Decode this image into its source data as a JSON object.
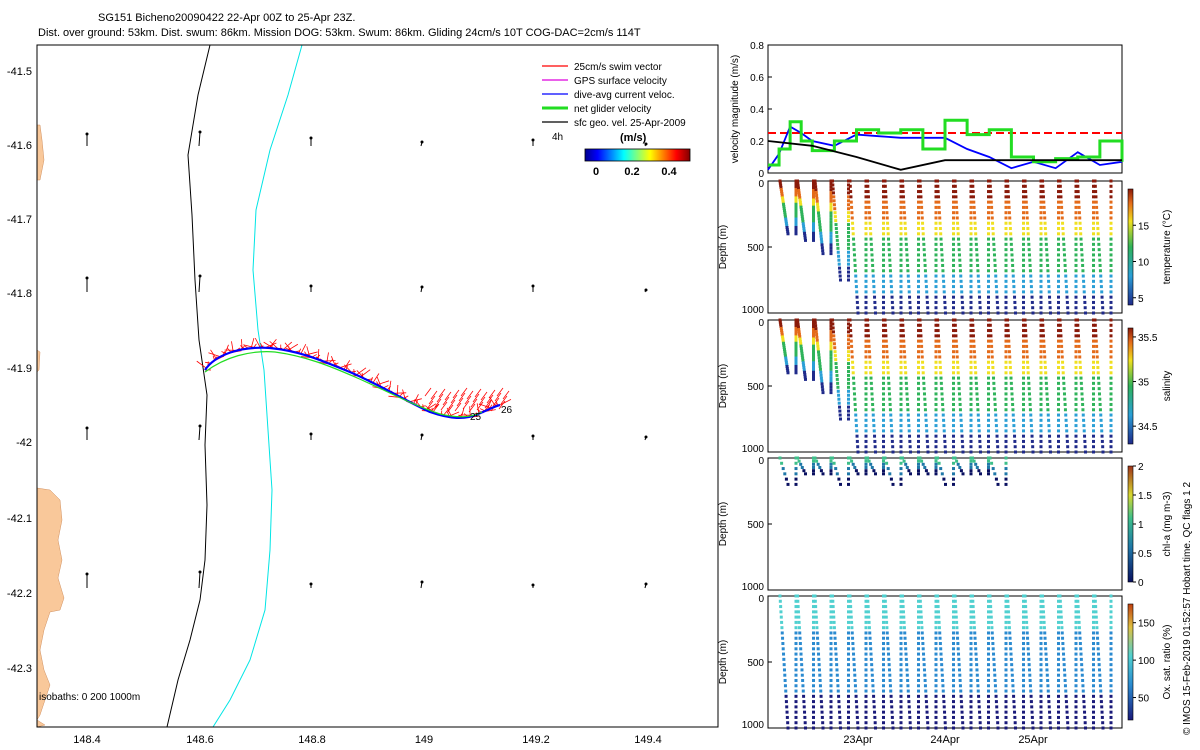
{
  "header": {
    "line1": "SG151 Bicheno20090422 22-Apr 00Z to 25-Apr 23Z.",
    "line2": "Dist. over ground: 53km. Dist. swum: 86km. Mission DOG: 53km. Swum: 86km. Gliding 24cm/s 10T COG-DAC=2cm/s 114T"
  },
  "colors": {
    "land": "#f9c89a",
    "swim": "#ff0000",
    "gps": "#dd00dd",
    "dac": "#0000ff",
    "net": "#22dd22",
    "sfc": "#000000",
    "isobath200": "#000000",
    "isobath1000": "#00e5e5"
  },
  "map": {
    "xticks": [
      "148.4",
      "148.6",
      "148.8",
      "149",
      "149.2",
      "149.4"
    ],
    "yticks": [
      "-41.5",
      "-41.6",
      "-41.7",
      "-41.8",
      "-41.9",
      "-42",
      "-42.1",
      "-42.2",
      "-42.3"
    ],
    "legend": [
      {
        "label": "25cm/s swim vector",
        "color": "#ff0000"
      },
      {
        "label": "GPS surface velocity",
        "color": "#dd00dd"
      },
      {
        "label": "dive-avg current veloc.",
        "color": "#0000ff"
      },
      {
        "label": "net glider velocity",
        "color": "#22dd22"
      },
      {
        "label": "sfc geo. vel. 25-Apr-2009",
        "color": "#000000"
      }
    ],
    "cbar_label_left": "4h",
    "cbar_title": "(m/s)",
    "cbar_ticks": [
      "0",
      "0.2",
      "0.4"
    ],
    "isobaths_label": "isobaths: 0   200   1000m",
    "end_labels": [
      "25",
      "26"
    ]
  },
  "chart_data": [
    {
      "type": "line",
      "title": "",
      "xlabel": "",
      "ylabel": "velocity magnitude (m/s)",
      "xlim": [
        "22-Apr 00:00",
        "26-Apr 00:00"
      ],
      "ylim": [
        0,
        0.8
      ],
      "yticks": [
        "0",
        "0.2",
        "0.4",
        "0.6",
        "0.8"
      ],
      "series": [
        {
          "name": "25cm/s swim vector",
          "color": "#ff0000",
          "x": [
            "22-Apr 00:00",
            "26-Apr 00:00"
          ],
          "y": [
            0.25,
            0.25
          ]
        },
        {
          "name": "dive-avg current veloc.",
          "color": "#0000ff",
          "x": [
            "22-Apr 00:00",
            "22-Apr 03:00",
            "22-Apr 06:00",
            "22-Apr 09:00",
            "22-Apr 12:00",
            "22-Apr 18:00",
            "23-Apr 00:00",
            "23-Apr 06:00",
            "23-Apr 12:00",
            "23-Apr 18:00",
            "24-Apr 00:00",
            "24-Apr 06:00",
            "24-Apr 12:00",
            "24-Apr 18:00",
            "25-Apr 00:00",
            "25-Apr 06:00",
            "25-Apr 12:00",
            "25-Apr 18:00",
            "26-Apr 00:00"
          ],
          "y": [
            0.02,
            0.12,
            0.29,
            0.25,
            0.2,
            0.17,
            0.24,
            0.23,
            0.22,
            0.22,
            0.22,
            0.15,
            0.1,
            0.03,
            0.07,
            0.03,
            0.13,
            0.05,
            0.07
          ]
        },
        {
          "name": "net glider velocity",
          "color": "#22dd22",
          "x": [
            "22-Apr 00:00",
            "22-Apr 03:00",
            "22-Apr 06:00",
            "22-Apr 09:00",
            "22-Apr 12:00",
            "22-Apr 18:00",
            "23-Apr 00:00",
            "23-Apr 06:00",
            "23-Apr 12:00",
            "23-Apr 18:00",
            "24-Apr 00:00",
            "24-Apr 06:00",
            "24-Apr 12:00",
            "24-Apr 18:00",
            "25-Apr 00:00",
            "25-Apr 06:00",
            "25-Apr 12:00",
            "25-Apr 18:00",
            "26-Apr 00:00"
          ],
          "y": [
            0.05,
            0.15,
            0.32,
            0.2,
            0.14,
            0.2,
            0.27,
            0.25,
            0.27,
            0.15,
            0.33,
            0.24,
            0.27,
            0.1,
            0.07,
            0.09,
            0.1,
            0.2,
            0.07
          ]
        },
        {
          "name": "sfc geo. vel.",
          "color": "#000000",
          "x": [
            "22-Apr 00:00",
            "22-Apr 12:00",
            "23-Apr 00:00",
            "23-Apr 12:00",
            "24-Apr 00:00",
            "24-Apr 12:00",
            "25-Apr 00:00",
            "25-Apr 12:00",
            "26-Apr 00:00"
          ],
          "y": [
            0.2,
            0.17,
            0.1,
            0.02,
            0.08,
            0.08,
            0.08,
            0.08,
            0.08
          ]
        }
      ]
    },
    {
      "type": "scatter",
      "ylabel": "Depth (m)",
      "yticks": [
        "0",
        "500",
        "1000"
      ],
      "ylim": [
        1000,
        0
      ],
      "colorbar_label": "temperature (°C)",
      "colorbar_ticks": [
        "5",
        "10",
        "15"
      ],
      "clim": [
        4,
        20
      ],
      "x": [
        "22-Apr",
        "26-Apr"
      ],
      "profiles": "yo-yo dives 0–1000 m, warm (~19 °C) at surface to ~5 °C at 1000 m"
    },
    {
      "type": "scatter",
      "ylabel": "Depth (m)",
      "yticks": [
        "0",
        "500",
        "1000"
      ],
      "ylim": [
        1000,
        0
      ],
      "colorbar_label": "salinity",
      "colorbar_ticks": [
        "34.5",
        "35",
        "35.5"
      ],
      "clim": [
        34.3,
        35.6
      ],
      "x": [
        "22-Apr",
        "26-Apr"
      ],
      "profiles": "yo-yo dives 0–1000 m, ~35.6 at surface to ~34.4 at 1000 m"
    },
    {
      "type": "scatter",
      "ylabel": "Depth (m)",
      "yticks": [
        "0",
        "500",
        "1000"
      ],
      "ylim": [
        1000,
        0
      ],
      "colorbar_label": "chl-a (mg m-3)",
      "colorbar_ticks": [
        "0",
        "0.5",
        "1",
        "1.5",
        "2"
      ],
      "clim": [
        0,
        2
      ],
      "x": [
        "22-Apr",
        "26-Apr"
      ],
      "profiles": "near-surface samples only, 0–200 m"
    },
    {
      "type": "scatter",
      "ylabel": "Depth (m)",
      "yticks": [
        "0",
        "500",
        "1000"
      ],
      "ylim": [
        1000,
        0
      ],
      "colorbar_label": "Ox. sat. ratio (%)",
      "colorbar_ticks": [
        "50",
        "100",
        "150"
      ],
      "clim": [
        20,
        175
      ],
      "x": [
        "22-Apr",
        "26-Apr"
      ],
      "xticks": [
        "23Apr",
        "24Apr",
        "25Apr"
      ],
      "profiles": "yo-yo dives 0–1000 m, ~100% at surface, ~60% at depth"
    }
  ],
  "footer": {
    "side_text": "© IMOS 15-Feb-2019 01:52:57 Hobart time. QC flags 1  2"
  }
}
